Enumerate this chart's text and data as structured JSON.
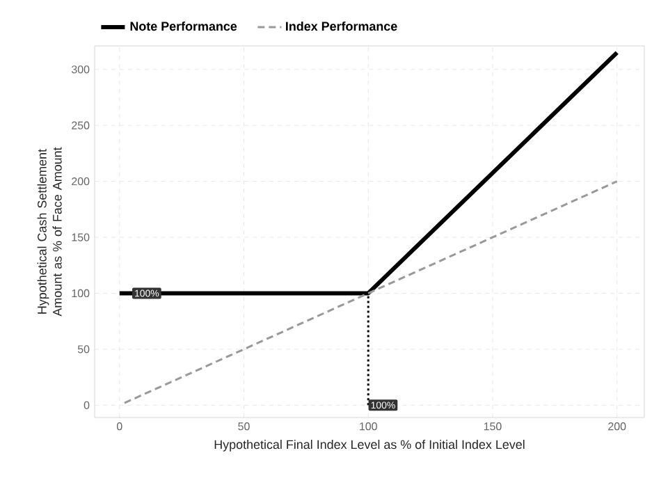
{
  "chart_data": {
    "type": "line",
    "xlabel": "Hypothetical Final Index Level as % of Initial Index Level",
    "ylabel": "Hypothetical Cash Settlement Amount as % of Face Amount",
    "series": [
      {
        "name": "Note Performance",
        "color": "#000000",
        "x": [
          0,
          100,
          200
        ],
        "values": [
          100,
          100,
          315
        ],
        "line_style": "solid"
      },
      {
        "name": "Index Performance",
        "color": "#999999",
        "x": [
          2,
          200
        ],
        "values": [
          2,
          200
        ],
        "line_style": "dashed"
      },
      {
        "color": "#000000",
        "x": [
          100,
          100
        ],
        "values": [
          0,
          100
        ],
        "line_style": "dotted"
      }
    ],
    "annotations": [
      {
        "text": "100%",
        "x": 5,
        "y": 100
      },
      {
        "text": "100%",
        "x": 100,
        "y": 0
      }
    ],
    "xlim": [
      -10,
      211
    ],
    "ylim": [
      -11,
      321
    ],
    "xticks": [
      0,
      50,
      100,
      150,
      200
    ],
    "yticks": [
      0,
      50,
      100,
      150,
      200,
      250,
      300
    ],
    "grid": true,
    "legend": "top left",
    "marker": "none"
  }
}
